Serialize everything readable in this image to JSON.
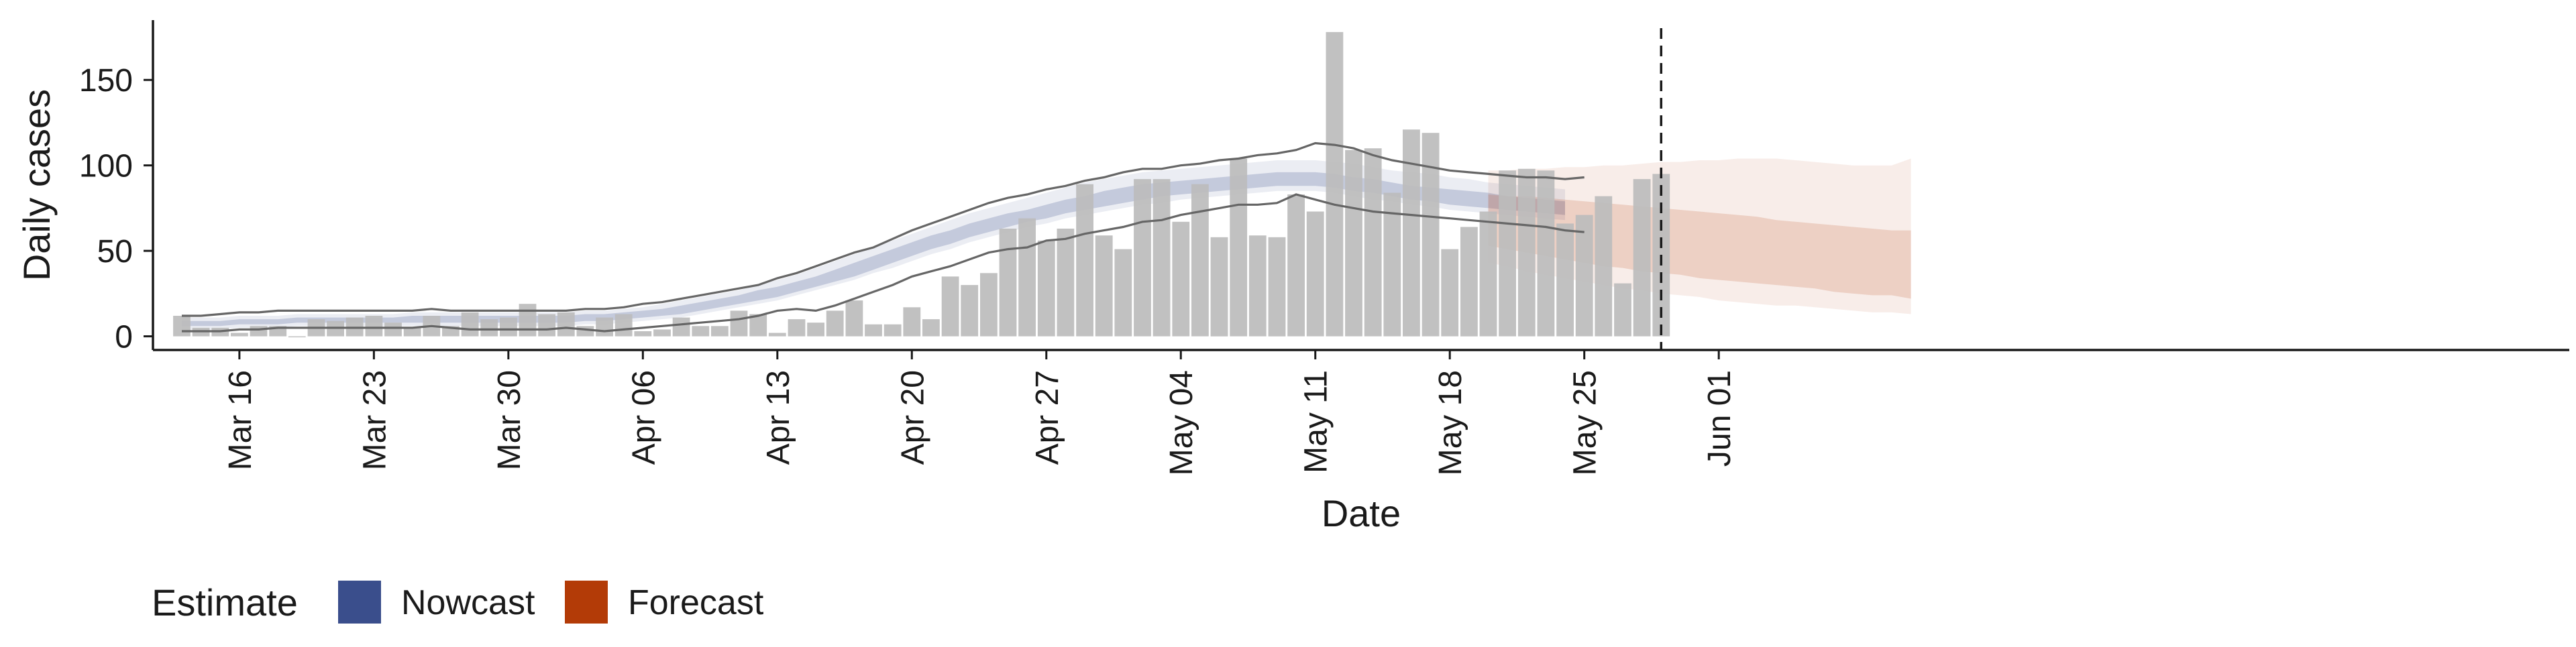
{
  "chart_data": {
    "type": "bar",
    "xlabel": "Date",
    "ylabel": "Daily cases",
    "x_start": "2020-03-13",
    "ylim": [
      -8,
      185
    ],
    "y_ticks": [
      0,
      50,
      100,
      150
    ],
    "x_ticks": [
      {
        "date": "2020-03-16",
        "label": "Mar 16"
      },
      {
        "date": "2020-03-23",
        "label": "Mar 23"
      },
      {
        "date": "2020-03-30",
        "label": "Mar 30"
      },
      {
        "date": "2020-04-06",
        "label": "Apr 06"
      },
      {
        "date": "2020-04-13",
        "label": "Apr 13"
      },
      {
        "date": "2020-04-20",
        "label": "Apr 20"
      },
      {
        "date": "2020-04-27",
        "label": "Apr 27"
      },
      {
        "date": "2020-05-04",
        "label": "May 04"
      },
      {
        "date": "2020-05-11",
        "label": "May 11"
      },
      {
        "date": "2020-05-18",
        "label": "May 18"
      },
      {
        "date": "2020-05-25",
        "label": "May 25"
      },
      {
        "date": "2020-06-01",
        "label": "Jun 01"
      }
    ],
    "reference_line_date": "2020-05-29",
    "bars": {
      "start": "2020-03-13",
      "color": "#bcbcbc",
      "values": [
        12,
        5,
        5,
        2,
        6,
        6,
        0,
        10,
        9,
        11,
        12,
        8,
        5,
        12,
        6,
        14,
        10,
        11,
        19,
        13,
        14,
        6,
        11,
        13,
        3,
        4,
        11,
        6,
        6,
        15,
        13,
        2,
        10,
        8,
        15,
        21,
        7,
        7,
        17,
        10,
        35,
        30,
        37,
        63,
        69,
        56,
        63,
        89,
        59,
        51,
        92,
        92,
        67,
        89,
        58,
        104,
        59,
        58,
        83,
        73,
        178,
        109,
        110,
        84,
        121,
        119,
        51,
        64,
        73,
        97,
        98,
        97,
        66,
        71,
        82,
        31,
        92,
        95
      ]
    },
    "observed_band": {
      "start": "2020-03-13",
      "upper": [
        12,
        12,
        13,
        14,
        14,
        15,
        15,
        15,
        15,
        15,
        15,
        15,
        15,
        16,
        15,
        15,
        15,
        15,
        15,
        15,
        15,
        16,
        16,
        17,
        19,
        20,
        22,
        24,
        26,
        28,
        30,
        34,
        37,
        41,
        45,
        49,
        52,
        57,
        62,
        66,
        70,
        74,
        78,
        81,
        83,
        86,
        88,
        91,
        93,
        96,
        98,
        98,
        100,
        101,
        103,
        104,
        106,
        107,
        109,
        113,
        112,
        110,
        106,
        103,
        101,
        99,
        97,
        96,
        95,
        94,
        93,
        93,
        92,
        93
      ],
      "lower": [
        3,
        3,
        3,
        4,
        4,
        5,
        5,
        5,
        5,
        5,
        5,
        5,
        5,
        6,
        5,
        4,
        4,
        4,
        4,
        4,
        5,
        4,
        3,
        4,
        5,
        6,
        7,
        8,
        9,
        10,
        12,
        15,
        16,
        15,
        18,
        22,
        26,
        30,
        35,
        38,
        41,
        45,
        49,
        51,
        52,
        56,
        57,
        60,
        62,
        64,
        67,
        68,
        71,
        73,
        75,
        77,
        77,
        78,
        83,
        80,
        77,
        75,
        73,
        72,
        71,
        70,
        69,
        68,
        67,
        66,
        65,
        64,
        62,
        61
      ]
    },
    "series": [
      {
        "name": "Nowcast",
        "color": "#3a4e8c",
        "start": "2020-03-13",
        "outer_upper": [
          11,
          11,
          11,
          12,
          12,
          12,
          13,
          13,
          13,
          13,
          13,
          13,
          14,
          14,
          14,
          14,
          14,
          14,
          14,
          14,
          14,
          15,
          15,
          16,
          17,
          19,
          21,
          23,
          25,
          27,
          30,
          33,
          36,
          40,
          44,
          48,
          52,
          56,
          60,
          64,
          68,
          72,
          75,
          78,
          81,
          84,
          87,
          90,
          92,
          94,
          96,
          97,
          98,
          99,
          100,
          101,
          102,
          103,
          103,
          103,
          102,
          101,
          99,
          97,
          96,
          95,
          93,
          92,
          90,
          89,
          88,
          87,
          86
        ],
        "inner_upper": [
          9,
          9,
          9,
          10,
          10,
          10,
          11,
          11,
          11,
          11,
          11,
          11,
          12,
          12,
          12,
          12,
          12,
          12,
          12,
          12,
          12,
          13,
          13,
          14,
          15,
          16,
          18,
          20,
          22,
          24,
          27,
          29,
          32,
          35,
          39,
          43,
          47,
          51,
          55,
          59,
          62,
          66,
          69,
          72,
          74,
          77,
          80,
          82,
          85,
          87,
          89,
          90,
          91,
          92,
          93,
          94,
          95,
          96,
          96,
          96,
          95,
          93,
          92,
          90,
          88,
          87,
          86,
          85,
          84,
          82,
          81,
          80,
          79
        ],
        "inner_lower": [
          6,
          6,
          6,
          7,
          7,
          7,
          8,
          8,
          8,
          8,
          8,
          8,
          8,
          8,
          8,
          8,
          8,
          8,
          8,
          8,
          8,
          9,
          9,
          10,
          11,
          12,
          13,
          15,
          17,
          19,
          21,
          23,
          26,
          29,
          32,
          35,
          39,
          43,
          47,
          51,
          54,
          58,
          61,
          64,
          67,
          69,
          72,
          74,
          76,
          78,
          80,
          82,
          83,
          84,
          85,
          86,
          87,
          88,
          88,
          88,
          87,
          85,
          84,
          82,
          80,
          79,
          77,
          76,
          75,
          74,
          73,
          72,
          71
        ],
        "outer_lower": [
          4,
          4,
          4,
          5,
          5,
          5,
          6,
          6,
          6,
          6,
          6,
          6,
          6,
          6,
          6,
          6,
          6,
          6,
          6,
          6,
          6,
          7,
          7,
          8,
          9,
          10,
          11,
          13,
          15,
          17,
          19,
          21,
          24,
          27,
          30,
          33,
          37,
          40,
          44,
          48,
          51,
          55,
          58,
          61,
          64,
          66,
          69,
          71,
          73,
          75,
          77,
          78,
          80,
          81,
          82,
          83,
          84,
          85,
          85,
          85,
          84,
          82,
          80,
          79,
          77,
          76,
          74,
          73,
          72,
          71,
          70,
          69,
          68
        ]
      },
      {
        "name": "Forecast",
        "color": "#b33b07",
        "start": "2020-05-20",
        "outer_upper": [
          97,
          97,
          98,
          98,
          99,
          99,
          100,
          100,
          101,
          102,
          102,
          103,
          103,
          104,
          104,
          104,
          103,
          102,
          101,
          100,
          100,
          100,
          104
        ],
        "inner_upper": [
          83,
          82,
          82,
          81,
          80,
          79,
          78,
          77,
          76,
          75,
          74,
          73,
          72,
          71,
          70,
          68,
          67,
          66,
          65,
          64,
          63,
          62,
          62
        ],
        "inner_lower": [
          53,
          51,
          49,
          47,
          45,
          43,
          41,
          40,
          38,
          37,
          36,
          34,
          33,
          32,
          31,
          30,
          29,
          28,
          26,
          25,
          24,
          24,
          22
        ],
        "outer_lower": [
          43,
          41,
          38,
          36,
          34,
          32,
          30,
          28,
          27,
          25,
          24,
          23,
          21,
          20,
          19,
          18,
          18,
          17,
          16,
          15,
          14,
          14,
          13
        ]
      }
    ],
    "legend": {
      "title": "Estimate",
      "position": "bottom-left",
      "items": [
        "Nowcast",
        "Forecast"
      ]
    }
  }
}
